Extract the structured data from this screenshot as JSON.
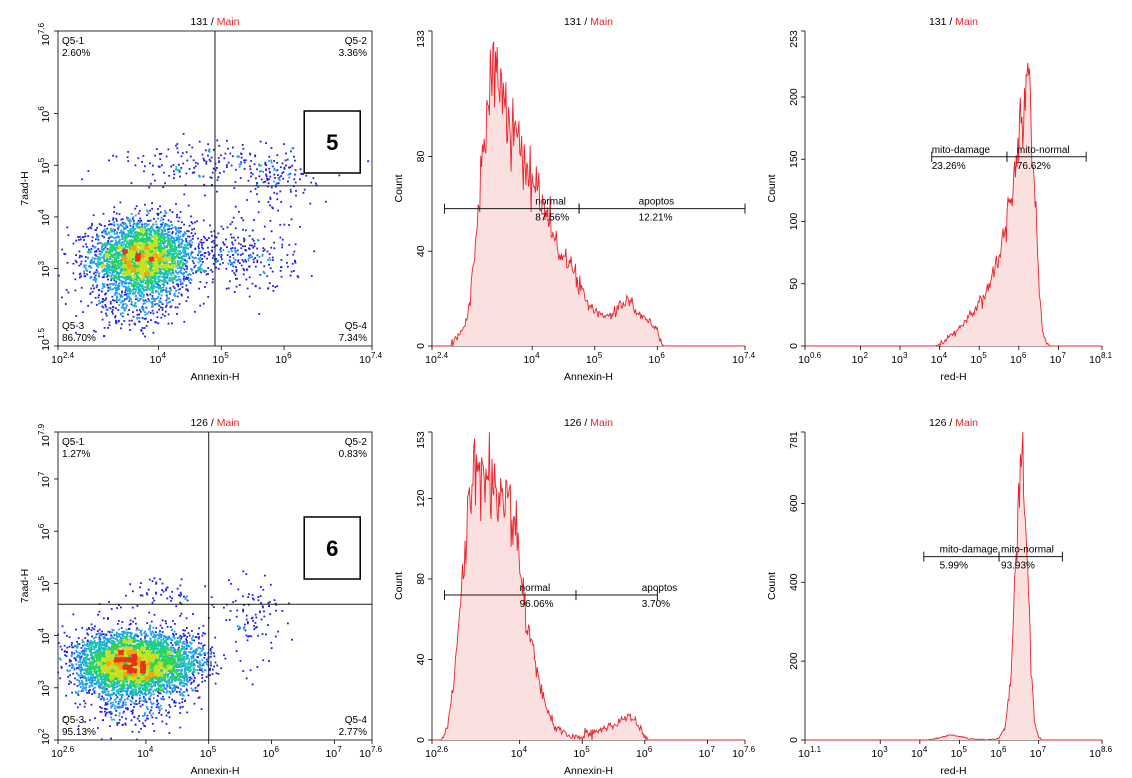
{
  "colors": {
    "axis": "#000000",
    "hist_line": "#e8242c",
    "hist_fill": "#fbe0e0",
    "title_red": "#e8242c",
    "gate": "#1a1a1a",
    "density": [
      "#1e1ee6",
      "#1a9cf0",
      "#19c4a8",
      "#2ad35a",
      "#c7e01e",
      "#f5a40e",
      "#e8321e"
    ]
  },
  "chart_data": [
    {
      "id": "r1c1",
      "type": "scatter",
      "title_sample": "131",
      "title_sep": " / ",
      "title_main": "Main",
      "xlabel": "Annexin-H",
      "ylabel": "7aad-H",
      "xlim_log": [
        2.4,
        7.4
      ],
      "ylim_log": [
        1.5,
        7.6
      ],
      "xticks": [
        {
          "e": 2.4,
          "t": "2.4"
        },
        {
          "e": 4,
          "t": "4"
        },
        {
          "e": 5,
          "t": "5"
        },
        {
          "e": 6,
          "t": "6"
        },
        {
          "e": 7.4,
          "t": "7.4"
        }
      ],
      "yticks": [
        {
          "e": 1.5,
          "t": "1.5"
        },
        {
          "e": 3,
          "t": "3"
        },
        {
          "e": 4,
          "t": "4"
        },
        {
          "e": 5,
          "t": "5"
        },
        {
          "e": 6,
          "t": "6"
        },
        {
          "e": 7.6,
          "t": "7.6"
        }
      ],
      "gate_x_log": 4.9,
      "gate_y_log": 4.6,
      "quadrants": [
        {
          "name": "Q5-1",
          "value": "2.60%",
          "pos": "tl"
        },
        {
          "name": "Q5-2",
          "value": "3.36%",
          "pos": "tr"
        },
        {
          "name": "Q5-3",
          "value": "86.70%",
          "pos": "bl"
        },
        {
          "name": "Q5-4",
          "value": "7.34%",
          "pos": "br"
        }
      ],
      "clusters": [
        {
          "cx": 3.75,
          "cy": 3.2,
          "sx": 0.4,
          "sy": 0.36,
          "n": 3400
        },
        {
          "cx": 5.3,
          "cy": 3.25,
          "sx": 0.45,
          "sy": 0.35,
          "n": 280
        },
        {
          "cx": 4.9,
          "cy": 5.0,
          "sx": 0.8,
          "sy": 0.22,
          "n": 190
        },
        {
          "cx": 5.9,
          "cy": 4.7,
          "sx": 0.3,
          "sy": 0.3,
          "n": 120
        },
        {
          "cx": 3.6,
          "cy": 2.25,
          "sx": 0.35,
          "sy": 0.25,
          "n": 200
        }
      ],
      "label_box": "5"
    },
    {
      "id": "r1c2",
      "type": "area",
      "title_sample": "131",
      "title_sep": " / ",
      "title_main": "Main",
      "xlabel": "Annexin-H",
      "ylabel": "Count",
      "xlim_log": [
        2.4,
        7.4
      ],
      "ylim": [
        0,
        133
      ],
      "xticks": [
        {
          "e": 2.4,
          "t": "2.4"
        },
        {
          "e": 4,
          "t": "4"
        },
        {
          "e": 5,
          "t": "5"
        },
        {
          "e": 6,
          "t": "6"
        },
        {
          "e": 7.4,
          "t": "7.4"
        }
      ],
      "yticks": [
        0,
        40,
        80,
        133
      ],
      "x": [
        2.4,
        2.7,
        2.9,
        3.0,
        3.1,
        3.2,
        3.3,
        3.4,
        3.5,
        3.6,
        3.7,
        3.8,
        3.9,
        4.0,
        4.1,
        4.2,
        4.3,
        4.4,
        4.5,
        4.6,
        4.7,
        4.8,
        4.9,
        5.0,
        5.1,
        5.2,
        5.3,
        5.4,
        5.5,
        5.6,
        5.7,
        5.8,
        5.9,
        6.0,
        6.1,
        7.4
      ],
      "y": [
        0,
        0,
        6,
        18,
        45,
        80,
        108,
        118,
        112,
        100,
        90,
        82,
        74,
        70,
        64,
        58,
        50,
        43,
        38,
        34,
        30,
        24,
        18,
        14,
        13,
        12,
        13,
        18,
        20,
        17,
        14,
        12,
        9,
        7,
        0,
        0
      ],
      "gates": [
        {
          "x0": 2.6,
          "x1": 4.75,
          "y": 58,
          "name": "normal",
          "value": "87.56%",
          "label_x": 4.05
        },
        {
          "x0": 4.75,
          "x1": 7.4,
          "y": 58,
          "name": "apoptos",
          "value": "12.21%",
          "label_x": 5.7
        }
      ]
    },
    {
      "id": "r1c3",
      "type": "area",
      "title_sample": "131",
      "title_sep": " / ",
      "title_main": "Main",
      "xlabel": "red-H",
      "ylabel": "Count",
      "xlim_log": [
        0.6,
        8.1
      ],
      "ylim": [
        0,
        253
      ],
      "xticks": [
        {
          "e": 0.6,
          "t": "0.6"
        },
        {
          "e": 2,
          "t": "2"
        },
        {
          "e": 3,
          "t": "3"
        },
        {
          "e": 4,
          "t": "4"
        },
        {
          "e": 5,
          "t": "5"
        },
        {
          "e": 6,
          "t": "6"
        },
        {
          "e": 7,
          "t": "7"
        },
        {
          "e": 8.1,
          "t": "8.1"
        }
      ],
      "yticks": [
        0,
        50,
        100,
        150,
        200,
        253
      ],
      "x": [
        0.6,
        3.9,
        4.3,
        4.6,
        4.9,
        5.1,
        5.3,
        5.5,
        5.65,
        5.8,
        5.9,
        6.0,
        6.1,
        6.2,
        6.3,
        6.4,
        6.5,
        6.6,
        6.7,
        6.8,
        8.1
      ],
      "y": [
        0,
        0,
        8,
        18,
        30,
        40,
        52,
        72,
        95,
        122,
        145,
        170,
        205,
        225,
        195,
        130,
        55,
        12,
        2,
        0,
        0
      ],
      "gates": [
        {
          "x0": 3.8,
          "x1": 5.7,
          "y": 152,
          "name": "mito-damage",
          "value": "23.26%",
          "label_x": 3.8
        },
        {
          "x0": 5.7,
          "x1": 7.7,
          "y": 152,
          "name": "mito-normal",
          "value": "76.62%",
          "label_x": 5.95
        }
      ]
    },
    {
      "id": "r2c1",
      "type": "scatter",
      "title_sample": "126",
      "title_sep": " / ",
      "title_main": "Main",
      "xlabel": "Annexin-H",
      "ylabel": "7aad-H",
      "xlim_log": [
        2.6,
        7.6
      ],
      "ylim_log": [
        2,
        7.9
      ],
      "xticks": [
        {
          "e": 2.6,
          "t": "2.6"
        },
        {
          "e": 4,
          "t": "4"
        },
        {
          "e": 5,
          "t": "5"
        },
        {
          "e": 6,
          "t": "6"
        },
        {
          "e": 7,
          "t": "7"
        },
        {
          "e": 7.6,
          "t": "7.6"
        }
      ],
      "yticks": [
        {
          "e": 2,
          "t": "2"
        },
        {
          "e": 3,
          "t": "3"
        },
        {
          "e": 4,
          "t": "4"
        },
        {
          "e": 5,
          "t": "5"
        },
        {
          "e": 6,
          "t": "6"
        },
        {
          "e": 7,
          "t": "7"
        },
        {
          "e": 7.9,
          "t": "7.9"
        }
      ],
      "gate_x_log": 5.0,
      "gate_y_log": 4.6,
      "quadrants": [
        {
          "name": "Q5-1",
          "value": "1.27%",
          "pos": "tl"
        },
        {
          "name": "Q5-2",
          "value": "0.83%",
          "pos": "tr"
        },
        {
          "name": "Q5-3",
          "value": "95.13%",
          "pos": "bl"
        },
        {
          "name": "Q5-4",
          "value": "2.77%",
          "pos": "br"
        }
      ],
      "clusters": [
        {
          "cx": 3.75,
          "cy": 3.45,
          "sx": 0.42,
          "sy": 0.3,
          "n": 4200
        },
        {
          "cx": 4.55,
          "cy": 3.5,
          "sx": 0.25,
          "sy": 0.28,
          "n": 500
        },
        {
          "cx": 5.7,
          "cy": 4.3,
          "sx": 0.25,
          "sy": 0.4,
          "n": 100
        },
        {
          "cx": 3.8,
          "cy": 2.6,
          "sx": 0.35,
          "sy": 0.25,
          "n": 180
        },
        {
          "cx": 4.3,
          "cy": 4.8,
          "sx": 0.4,
          "sy": 0.2,
          "n": 60
        }
      ],
      "label_box": "6"
    },
    {
      "id": "r2c2",
      "type": "area",
      "title_sample": "126",
      "title_sep": " / ",
      "title_main": "Main",
      "xlabel": "Annexin-H",
      "ylabel": "Count",
      "xlim_log": [
        2.6,
        7.6
      ],
      "ylim": [
        0,
        153
      ],
      "xticks": [
        {
          "e": 2.6,
          "t": "2.6"
        },
        {
          "e": 4,
          "t": "4"
        },
        {
          "e": 5,
          "t": "5"
        },
        {
          "e": 6,
          "t": "6"
        },
        {
          "e": 7,
          "t": "7"
        },
        {
          "e": 7.6,
          "t": "7.6"
        }
      ],
      "yticks": [
        0,
        40,
        80,
        120,
        153
      ],
      "x": [
        2.6,
        2.75,
        2.85,
        2.95,
        3.05,
        3.15,
        3.25,
        3.35,
        3.45,
        3.55,
        3.65,
        3.75,
        3.85,
        3.95,
        4.05,
        4.15,
        4.25,
        4.35,
        4.45,
        4.55,
        4.65,
        4.8,
        5.0,
        5.2,
        5.4,
        5.6,
        5.75,
        5.95,
        6.05,
        7.6
      ],
      "y": [
        0,
        0,
        8,
        28,
        65,
        100,
        125,
        133,
        135,
        128,
        120,
        125,
        118,
        100,
        78,
        55,
        38,
        25,
        15,
        8,
        4,
        2,
        2,
        4,
        6,
        9,
        12,
        5,
        0,
        0
      ],
      "gates": [
        {
          "x0": 2.8,
          "x1": 4.9,
          "y": 72,
          "name": "normal",
          "value": "96.06%",
          "label_x": 4.0
        },
        {
          "x0": 4.9,
          "x1": 6.2,
          "y": 72,
          "name": "apoptos",
          "value": "3.70%",
          "label_x": 5.95
        }
      ]
    },
    {
      "id": "r2c3",
      "type": "area",
      "title_sample": "126",
      "title_sep": " / ",
      "title_main": "Main",
      "xlabel": "red-H",
      "ylabel": "Count",
      "xlim_log": [
        1.1,
        8.6
      ],
      "ylim": [
        0,
        781
      ],
      "xticks": [
        {
          "e": 1.1,
          "t": "1.1"
        },
        {
          "e": 3,
          "t": "3"
        },
        {
          "e": 4,
          "t": "4"
        },
        {
          "e": 5,
          "t": "5"
        },
        {
          "e": 6,
          "t": "6"
        },
        {
          "e": 7,
          "t": "7"
        },
        {
          "e": 8.6,
          "t": "8.6"
        }
      ],
      "yticks": [
        0,
        200,
        400,
        600,
        781
      ],
      "x": [
        1.1,
        4.2,
        4.5,
        4.8,
        5.1,
        5.4,
        5.7,
        6.0,
        6.15,
        6.3,
        6.4,
        6.5,
        6.6,
        6.7,
        6.8,
        6.9,
        7.0,
        7.1,
        8.6
      ],
      "y": [
        0,
        0,
        6,
        14,
        6,
        2,
        0,
        4,
        30,
        150,
        420,
        640,
        700,
        480,
        200,
        40,
        8,
        0,
        0
      ],
      "gates": [
        {
          "x0": 4.1,
          "x1": 6.0,
          "y": 465,
          "name": "mito-damage",
          "value": "5.99%",
          "label_x": 4.5
        },
        {
          "x0": 6.0,
          "x1": 7.6,
          "y": 465,
          "name": "mito-normal",
          "value": "93.93%",
          "label_x": 6.05
        }
      ]
    }
  ]
}
